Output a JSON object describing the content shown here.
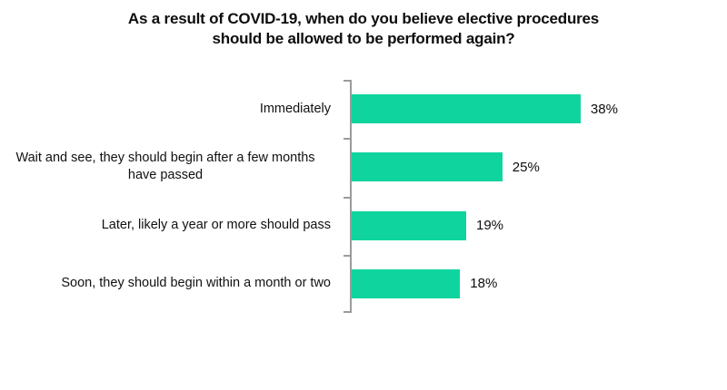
{
  "title": {
    "lines": [
      "As a result of COVID-19, when do you believe elective procedures",
      "should be allowed to be performed again?"
    ]
  },
  "chart_data": {
    "type": "bar",
    "orientation": "horizontal",
    "title": "As a result of COVID-19, when do you believe elective procedures should be allowed to be performed again?",
    "categories": [
      "Immediately",
      "Wait and see, they should begin after a few months have passed",
      "Later, likely a year or more should pass",
      "Soon, they should begin within a month or two"
    ],
    "values": [
      38,
      25,
      19,
      18
    ],
    "value_labels": [
      "38%",
      "25%",
      "19%",
      "18%"
    ],
    "xlabel": "",
    "ylabel": "",
    "xlim": [
      0,
      40
    ],
    "grid": false,
    "legend": false,
    "bar_color": "#0FD49D",
    "axis_color": "#9B9B9B",
    "text_color": "#0D0D0D"
  }
}
